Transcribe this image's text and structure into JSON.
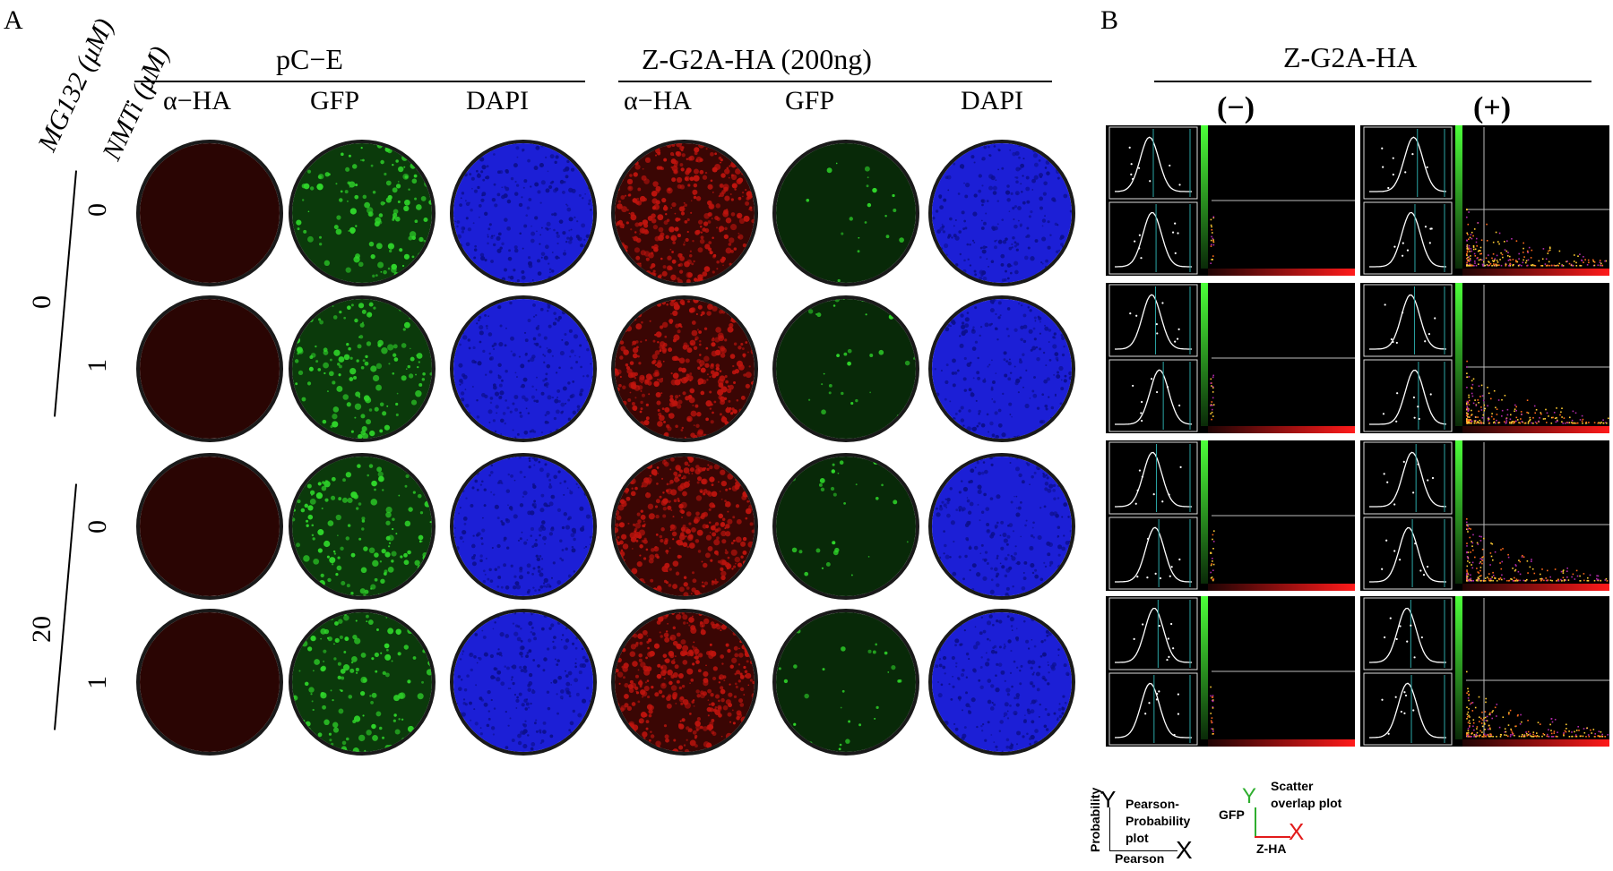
{
  "panelA": {
    "letter": "A",
    "row_axis_labels": {
      "mg132": "MG132 (μM)",
      "nmti": "NMTi (μM)"
    },
    "groups": [
      {
        "title": "pC−E",
        "columns": [
          "α−HA",
          "GFP",
          "DAPI"
        ]
      },
      {
        "title": "Z-G2A-HA (200ng)",
        "columns": [
          "α−HA",
          "GFP",
          "DAPI"
        ]
      }
    ],
    "mg132_values": [
      "0",
      "20"
    ],
    "nmti_values": [
      "0",
      "1",
      "0",
      "1"
    ]
  },
  "panelB": {
    "letter": "B",
    "title": "Z-G2A-HA",
    "columns": [
      "(−)",
      "(+)"
    ],
    "legend": {
      "pearson": {
        "y_letter": "Y",
        "x_letter": "X",
        "y_axis": "Probability",
        "x_axis": "Pearson",
        "text_line1": "Pearson-",
        "text_line2": "Probability",
        "text_line3": "plot"
      },
      "scatter": {
        "y_letter": "Y",
        "x_letter": "X",
        "y_axis": "GFP",
        "x_axis": "Z-HA",
        "text_line1": "Scatter",
        "text_line2": "overlap plot"
      }
    }
  },
  "colors": {
    "ha_negative": "#2a0503",
    "ha_positive": "#c0140e",
    "gfp": "#2fd62a",
    "dapi": "#1c1fd6",
    "legend_green": "#2fae2f",
    "legend_red": "#e21b1b"
  }
}
